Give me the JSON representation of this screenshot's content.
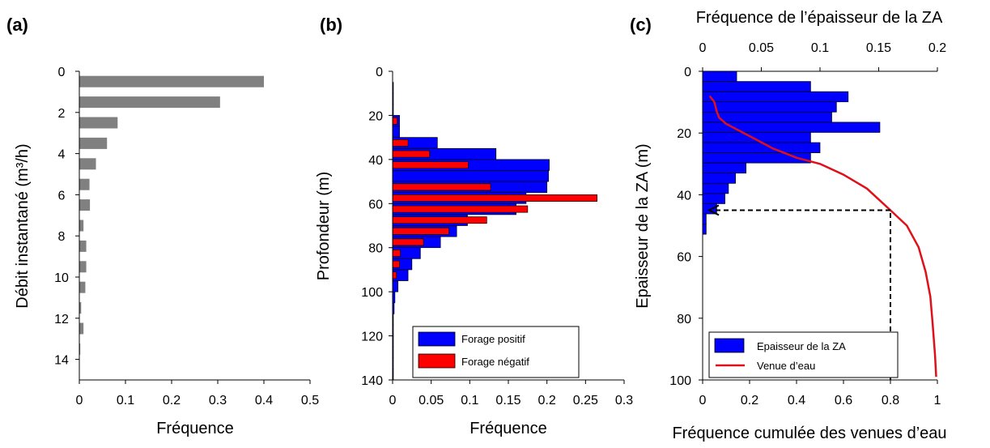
{
  "chart_data": [
    {
      "panel": "(a)",
      "type": "bar",
      "orientation": "horizontal",
      "xlabel": "Fréquence",
      "ylabel": "Débit instantané (m³/h)",
      "xlim": [
        0,
        0.5
      ],
      "ylim": [
        0,
        15
      ],
      "xticks": [
        "0",
        "0.1",
        "0.2",
        "0.3",
        "0.4",
        "0.5"
      ],
      "yticks": [
        "0",
        "2",
        "4",
        "6",
        "8",
        "10",
        "12",
        "14"
      ],
      "y": [
        0.5,
        1.5,
        2.5,
        3.5,
        4.5,
        5.5,
        6.5,
        7.5,
        8.5,
        9.5,
        10.5,
        11.5,
        12.5,
        13.5
      ],
      "values": [
        0.4,
        0.305,
        0.083,
        0.06,
        0.036,
        0.022,
        0.023,
        0.009,
        0.015,
        0.015,
        0.013,
        0.004,
        0.009,
        0.002
      ],
      "color": "#808080"
    },
    {
      "panel": "(b)",
      "type": "bar",
      "orientation": "horizontal",
      "xlabel": "Fréquence",
      "ylabel": "Profondeur (m)",
      "xlim": [
        0,
        0.3
      ],
      "ylim": [
        0,
        140
      ],
      "xticks": [
        "0",
        "0.05",
        "0.1",
        "0.15",
        "0.2",
        "0.25",
        "0.3"
      ],
      "yticks": [
        "0",
        "20",
        "40",
        "60",
        "80",
        "100",
        "120",
        "140"
      ],
      "y_bins": [
        [
          5,
          10
        ],
        [
          10,
          15
        ],
        [
          15,
          20
        ],
        [
          20,
          25
        ],
        [
          25,
          30
        ],
        [
          30,
          35
        ],
        [
          35,
          40
        ],
        [
          40,
          45
        ],
        [
          45,
          50
        ],
        [
          50,
          55
        ],
        [
          55,
          60
        ],
        [
          60,
          65
        ],
        [
          65,
          70
        ],
        [
          70,
          75
        ],
        [
          75,
          80
        ],
        [
          80,
          85
        ],
        [
          85,
          90
        ],
        [
          90,
          95
        ],
        [
          95,
          100
        ],
        [
          100,
          105
        ],
        [
          105,
          110
        ],
        [
          110,
          115
        ],
        [
          115,
          120
        ],
        [
          120,
          125
        ],
        [
          125,
          130
        ],
        [
          130,
          135
        ],
        [
          135,
          140
        ]
      ],
      "series": [
        {
          "name": "Forage positif",
          "color": "#0000ff",
          "values": [
            0.001,
            0.001,
            0.001,
            0.009,
            0.009,
            0.058,
            0.134,
            0.203,
            0.202,
            0.2,
            0.173,
            0.16,
            0.097,
            0.083,
            0.062,
            0.036,
            0.025,
            0.02,
            0.007,
            0.003,
            0.002,
            0.001,
            0.001,
            0.001,
            0.001,
            0.001,
            0.001
          ]
        },
        {
          "name": "Forage négatif",
          "color": "#ff0000",
          "values": [
            0,
            0,
            0,
            0.006,
            0,
            0.02,
            0.048,
            0.098,
            0,
            0.127,
            0.265,
            0.175,
            0.122,
            0.073,
            0.04,
            0.01,
            0.009,
            0.005,
            0,
            0,
            0,
            0,
            0,
            0,
            0,
            0,
            0
          ]
        }
      ],
      "legend": {
        "position": "bottom-right",
        "entries": [
          "Forage positif",
          "Forage négatif"
        ]
      }
    },
    {
      "panel": "(c)",
      "type": "bar",
      "orientation": "horizontal",
      "top_xlabel": "Fréquence de l’épaisseur de la ZA",
      "bottom_xlabel": "Fréquence cumulée des venues d’eau",
      "ylabel": "Epaisseur de la ZA (m)",
      "top_xlim": [
        0,
        0.2
      ],
      "bottom_xlim": [
        0,
        1
      ],
      "ylim": [
        0,
        100
      ],
      "top_xticks": [
        "0",
        "0.05",
        "0.1",
        "0.15",
        "0.2"
      ],
      "bottom_xticks": [
        "0",
        "0.2",
        "0.4",
        "0.6",
        "0.8",
        "1"
      ],
      "yticks": [
        "0",
        "20",
        "40",
        "60",
        "80",
        "100"
      ],
      "bin_height": 3.3,
      "y_bins_start": [
        0,
        3.3,
        6.6,
        9.9,
        13.2,
        16.5,
        19.8,
        23.1,
        26.4,
        29.7,
        33.0,
        36.3,
        39.6,
        42.9,
        46.2,
        49.5
      ],
      "series": [
        {
          "name": "Epaisseur de la ZA",
          "color": "#0000ff",
          "values": [
            0.029,
            0.092,
            0.124,
            0.114,
            0.11,
            0.151,
            0.092,
            0.1,
            0.092,
            0.037,
            0.028,
            0.022,
            0.019,
            0.012,
            0.003,
            0.003
          ]
        },
        {
          "name": "Venue d’eau",
          "type": "line",
          "color": "#e0101a",
          "points": [
            [
              0.03,
              8
            ],
            [
              0.05,
              10
            ],
            [
              0.06,
              13
            ],
            [
              0.07,
              15
            ],
            [
              0.1,
              17
            ],
            [
              0.2,
              21
            ],
            [
              0.3,
              25
            ],
            [
              0.4,
              28
            ],
            [
              0.5,
              30
            ],
            [
              0.6,
              33.5
            ],
            [
              0.7,
              38
            ],
            [
              0.8,
              45
            ],
            [
              0.87,
              50
            ],
            [
              0.92,
              57
            ],
            [
              0.95,
              65
            ],
            [
              0.97,
              73
            ],
            [
              0.98,
              82
            ],
            [
              0.99,
              92
            ],
            [
              0.995,
              99
            ]
          ]
        }
      ],
      "annotation": {
        "x": 0.8,
        "y": 45
      },
      "legend": {
        "position": "bottom-right",
        "entries": [
          "Epaisseur de la ZA",
          "Venue d’eau"
        ]
      }
    }
  ]
}
